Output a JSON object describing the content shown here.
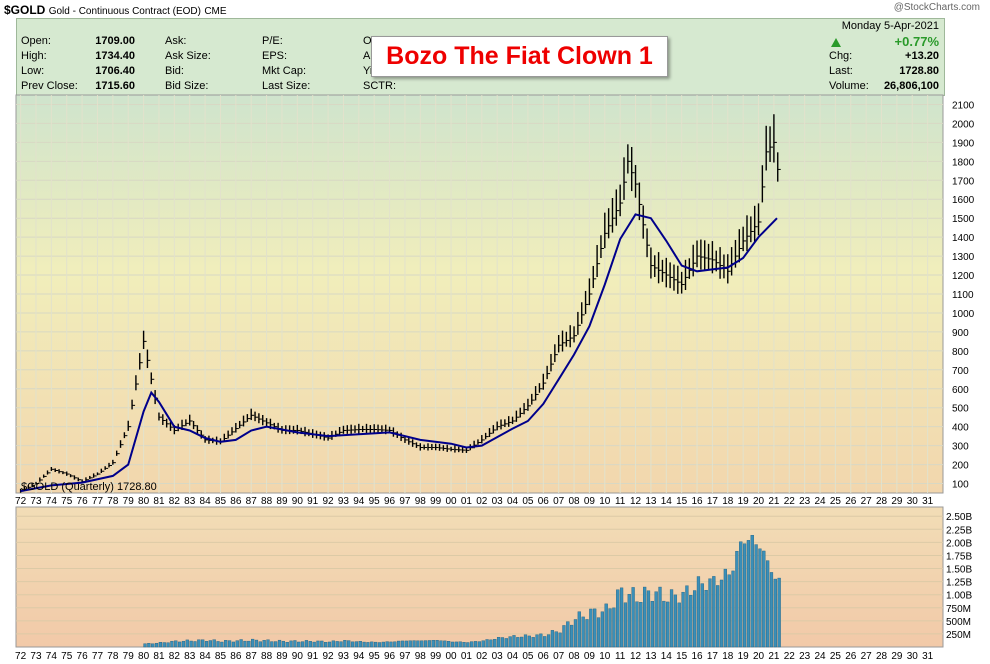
{
  "header": {
    "symbol": "$GOLD",
    "description": "Gold - Continuous Contract (EOD)",
    "exchange": "CME",
    "watermark": "@StockCharts.com"
  },
  "quote": {
    "col1": [
      {
        "label": "Open:",
        "value": "1709.00"
      },
      {
        "label": "High:",
        "value": "1734.40"
      },
      {
        "label": "Low:",
        "value": "1706.40"
      },
      {
        "label": "Prev Close:",
        "value": "1715.60"
      }
    ],
    "col2": [
      "Ask:",
      "Ask Size:",
      "Bid:",
      "Bid Size:"
    ],
    "col3": [
      "P/E:",
      "EPS:",
      "Mkt Cap:",
      "Last Size:"
    ],
    "col4": [
      "Opt",
      "An",
      "Yi",
      "SCTR:"
    ],
    "date": "Monday  5-Apr-2021",
    "change_pct": "+0.77%",
    "change_arrow_color": "#2a9a2a",
    "right": [
      {
        "label": "Chg:",
        "value": "+13.20"
      },
      {
        "label": "Last:",
        "value": "1728.80"
      },
      {
        "label": "Volume:",
        "value": "26,806,100"
      }
    ]
  },
  "annotation": "Bozo The Fiat Clown 1",
  "chart_data": {
    "type": "line",
    "price_legend": "$GOLD (Quarterly) 1728.80",
    "scale": "inverted",
    "y_ticks": [
      100,
      200,
      300,
      400,
      500,
      600,
      700,
      800,
      900,
      1000,
      1100,
      1200,
      1300,
      1400,
      1500,
      1600,
      1700,
      1800,
      1900,
      2000,
      2100
    ],
    "ylim": [
      2150,
      50
    ],
    "x_ticks": [
      "72",
      "73",
      "74",
      "75",
      "76",
      "77",
      "78",
      "79",
      "80",
      "81",
      "82",
      "83",
      "84",
      "85",
      "86",
      "87",
      "88",
      "89",
      "90",
      "91",
      "92",
      "93",
      "94",
      "95",
      "96",
      "97",
      "98",
      "99",
      "00",
      "01",
      "02",
      "03",
      "04",
      "05",
      "06",
      "07",
      "08",
      "09",
      "10",
      "11",
      "12",
      "13",
      "14",
      "15",
      "16",
      "17",
      "18",
      "19",
      "20",
      "21",
      "22",
      "23",
      "24",
      "25",
      "26",
      "27",
      "28",
      "29",
      "30",
      "31"
    ],
    "xlim": [
      1971.7,
      2032.0
    ],
    "series": [
      {
        "name": "$GOLD",
        "values": [
          [
            1972,
            60
          ],
          [
            1973,
            100
          ],
          [
            1974,
            175
          ],
          [
            1975,
            150
          ],
          [
            1976,
            110
          ],
          [
            1977,
            150
          ],
          [
            1978,
            210
          ],
          [
            1979,
            400
          ],
          [
            1980.0,
            850
          ],
          [
            1980.5,
            650
          ],
          [
            1981,
            450
          ],
          [
            1982,
            380
          ],
          [
            1983,
            430
          ],
          [
            1984,
            330
          ],
          [
            1985,
            320
          ],
          [
            1986,
            390
          ],
          [
            1987,
            460
          ],
          [
            1988,
            420
          ],
          [
            1989,
            380
          ],
          [
            1990,
            380
          ],
          [
            1991,
            360
          ],
          [
            1992,
            340
          ],
          [
            1993,
            380
          ],
          [
            1994,
            385
          ],
          [
            1995,
            385
          ],
          [
            1996,
            380
          ],
          [
            1997,
            330
          ],
          [
            1998,
            290
          ],
          [
            1999,
            290
          ],
          [
            2000,
            280
          ],
          [
            2001,
            275
          ],
          [
            2002,
            330
          ],
          [
            2003,
            400
          ],
          [
            2004,
            430
          ],
          [
            2005,
            510
          ],
          [
            2006,
            630
          ],
          [
            2007,
            830
          ],
          [
            2008,
            880
          ],
          [
            2009,
            1100
          ],
          [
            2010,
            1420
          ],
          [
            2011.0,
            1580
          ],
          [
            2011.5,
            1800
          ],
          [
            2012,
            1680
          ],
          [
            2013,
            1250
          ],
          [
            2014,
            1200
          ],
          [
            2015,
            1150
          ],
          [
            2016,
            1300
          ],
          [
            2017,
            1280
          ],
          [
            2018,
            1220
          ],
          [
            2019,
            1380
          ],
          [
            2020,
            1480
          ],
          [
            2020.5,
            1850
          ],
          [
            2021.0,
            1900
          ],
          [
            2021.3,
            1728.8
          ]
        ],
        "color": "#000000"
      },
      {
        "name": "MA",
        "values": [
          [
            1972,
            60
          ],
          [
            1974,
            90
          ],
          [
            1976,
            105
          ],
          [
            1978,
            140
          ],
          [
            1979,
            200
          ],
          [
            1980,
            480
          ],
          [
            1980.5,
            580
          ],
          [
            1981,
            530
          ],
          [
            1982,
            400
          ],
          [
            1983,
            380
          ],
          [
            1984,
            340
          ],
          [
            1985,
            320
          ],
          [
            1986,
            330
          ],
          [
            1987,
            380
          ],
          [
            1988,
            400
          ],
          [
            1989,
            385
          ],
          [
            1990,
            370
          ],
          [
            1992,
            350
          ],
          [
            1994,
            360
          ],
          [
            1996,
            370
          ],
          [
            1998,
            330
          ],
          [
            2000,
            310
          ],
          [
            2001,
            290
          ],
          [
            2002,
            300
          ],
          [
            2003,
            345
          ],
          [
            2004,
            390
          ],
          [
            2005,
            430
          ],
          [
            2006,
            520
          ],
          [
            2007,
            650
          ],
          [
            2008,
            780
          ],
          [
            2009,
            930
          ],
          [
            2010,
            1150
          ],
          [
            2011,
            1390
          ],
          [
            2012,
            1520
          ],
          [
            2013,
            1500
          ],
          [
            2014,
            1380
          ],
          [
            2015,
            1250
          ],
          [
            2016,
            1220
          ],
          [
            2017,
            1230
          ],
          [
            2018,
            1240
          ],
          [
            2019,
            1290
          ],
          [
            2020,
            1400
          ],
          [
            2021.2,
            1500
          ]
        ],
        "color": "#00008b"
      }
    ],
    "volume": {
      "y_ticks": [
        "250M",
        "500M",
        "750M",
        "1.00B",
        "1.25B",
        "1.50B",
        "1.75B",
        "2.00B",
        "2.25B",
        "2.50B"
      ],
      "ylim": [
        0,
        2.6
      ],
      "unit": "B",
      "color": "#3a8fb8",
      "values": [
        [
          1980,
          0.06
        ],
        [
          1981,
          0.08
        ],
        [
          1982,
          0.11
        ],
        [
          1983,
          0.12
        ],
        [
          1984,
          0.13
        ],
        [
          1985,
          0.11
        ],
        [
          1986,
          0.12
        ],
        [
          1987,
          0.13
        ],
        [
          1988,
          0.12
        ],
        [
          1989,
          0.11
        ],
        [
          1990,
          0.11
        ],
        [
          1991,
          0.11
        ],
        [
          1992,
          0.1
        ],
        [
          1993,
          0.12
        ],
        [
          1994,
          0.1
        ],
        [
          1995,
          0.09
        ],
        [
          1996,
          0.1
        ],
        [
          1997,
          0.12
        ],
        [
          1998,
          0.12
        ],
        [
          1999,
          0.13
        ],
        [
          2000,
          0.1
        ],
        [
          2001,
          0.09
        ],
        [
          2002,
          0.12
        ],
        [
          2003,
          0.17
        ],
        [
          2004,
          0.2
        ],
        [
          2005,
          0.21
        ],
        [
          2006,
          0.23
        ],
        [
          2007,
          0.32
        ],
        [
          2008,
          0.55
        ],
        [
          2009,
          0.65
        ],
        [
          2010,
          0.7
        ],
        [
          2011,
          1.05
        ],
        [
          2012,
          0.95
        ],
        [
          2013,
          1.05
        ],
        [
          2014,
          0.95
        ],
        [
          2015,
          1.0
        ],
        [
          2016,
          1.2
        ],
        [
          2017,
          1.25
        ],
        [
          2018,
          1.4
        ],
        [
          2019,
          2.1
        ],
        [
          2020,
          1.95
        ],
        [
          2021,
          1.3
        ]
      ]
    }
  }
}
